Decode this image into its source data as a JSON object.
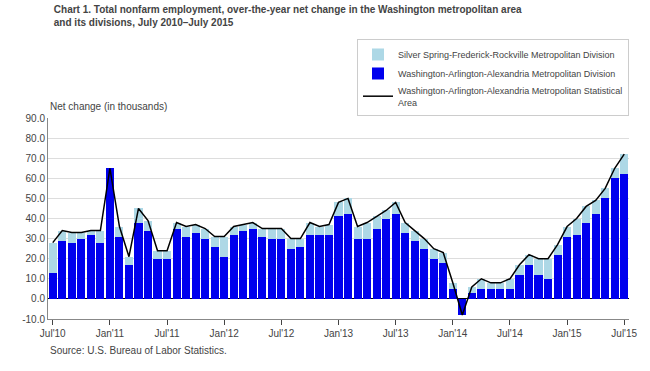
{
  "chart_data": {
    "type": "bar",
    "title": "Chart 1. Total nonfarm employment, over-the-year net change in the Washington metropolitan area\nand its divisions, July 2010–July 2015",
    "ylabel": "Net change (in thousands)",
    "source": "Source: U.S. Bureau of Labor Statistics.",
    "stacked": true,
    "grid": true,
    "legend": "upper right",
    "categories": [
      "Jul'10",
      null,
      null,
      null,
      null,
      null,
      "Jan'11",
      null,
      null,
      null,
      null,
      null,
      "Jul'11",
      null,
      null,
      null,
      null,
      null,
      "Jan'12",
      null,
      null,
      null,
      null,
      null,
      "Jul'12",
      null,
      null,
      null,
      null,
      null,
      "Jan'13",
      null,
      null,
      null,
      null,
      null,
      "Jul'13",
      null,
      null,
      null,
      null,
      null,
      "Jan'14",
      null,
      null,
      null,
      null,
      null,
      "Jul'14",
      null,
      null,
      null,
      null,
      null,
      "Jan'15",
      null,
      null,
      null,
      null,
      null,
      "Jul'15"
    ],
    "ylim": [
      -10.0,
      90.0
    ],
    "yticks": [
      {
        "value": -10.0,
        "label": "-10.0"
      },
      {
        "value": 0.0,
        "label": "0.0"
      },
      {
        "value": 10.0,
        "label": "10.0"
      },
      {
        "value": 20.0,
        "label": "20.0"
      },
      {
        "value": 30.0,
        "label": "30.0"
      },
      {
        "value": 40.0,
        "label": "40.0"
      },
      {
        "value": 50.0,
        "label": "50.0"
      },
      {
        "value": 60.0,
        "label": "60.0"
      },
      {
        "value": 70.0,
        "label": "70.0"
      },
      {
        "value": 80.0,
        "label": "80.0"
      },
      {
        "value": 90.0,
        "label": "90.0"
      }
    ],
    "series": [
      {
        "name": "Washington-Arlington-Alexandria Metropolitan Division",
        "type": "bar",
        "color": "#0000EE",
        "values": [
          13,
          29,
          28,
          30,
          32,
          28,
          65,
          31,
          17,
          38,
          34,
          20,
          20,
          35,
          31,
          33,
          30,
          26,
          21,
          32,
          34,
          35,
          31,
          30,
          30,
          25,
          26,
          32,
          32,
          32,
          41,
          42,
          30,
          30,
          35,
          40,
          42,
          33,
          29,
          25,
          20,
          18,
          5,
          -8,
          3,
          5,
          5,
          5,
          5,
          12,
          17,
          12,
          10,
          22,
          31,
          32,
          38,
          42,
          50,
          60,
          62
        ]
      },
      {
        "name": "Silver Spring-Frederick-Rockville Metropolitan Division",
        "type": "bar",
        "color": "#ADD8E6",
        "values": [
          15,
          5,
          5,
          3,
          2,
          6,
          0,
          5,
          4,
          7,
          5,
          4,
          4,
          3,
          5,
          4,
          5,
          5,
          10,
          4,
          3,
          3,
          4,
          5,
          5,
          5,
          4,
          6,
          4,
          5,
          7,
          8,
          6,
          8,
          6,
          4,
          6,
          5,
          5,
          5,
          5,
          5,
          3,
          0,
          3,
          5,
          3,
          3,
          5,
          5,
          5,
          8,
          10,
          5,
          5,
          8,
          8,
          7,
          5,
          5,
          10
        ]
      },
      {
        "name": "Washington-Arlington-Alexandria Metropolitan Statistical\nArea",
        "type": "line",
        "color": "#000000",
        "values": [
          28,
          34,
          33,
          33,
          34,
          34,
          65,
          36,
          21,
          45,
          39,
          24,
          24,
          38,
          36,
          37,
          35,
          31,
          31,
          36,
          37,
          38,
          35,
          35,
          35,
          30,
          30,
          38,
          36,
          37,
          48,
          50,
          36,
          38,
          41,
          44,
          48,
          38,
          34,
          30,
          25,
          23,
          8,
          -8,
          6,
          10,
          8,
          8,
          10,
          17,
          22,
          20,
          20,
          27,
          36,
          40,
          46,
          49,
          55,
          65,
          72
        ]
      }
    ]
  }
}
